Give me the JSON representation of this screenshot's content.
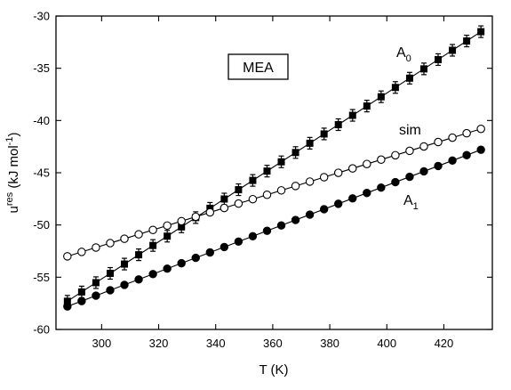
{
  "chart_data": {
    "type": "scatter",
    "xlabel": {
      "base": "T (K)"
    },
    "ylabel": {
      "base": "u",
      "sup": "res",
      "rest": " (kJ mol",
      "sup2": "-1",
      "end": ")"
    },
    "xlim": [
      284,
      437
    ],
    "ylim": [
      -60,
      -30
    ],
    "xticks": [
      300,
      320,
      340,
      360,
      380,
      400,
      420
    ],
    "yticks": [
      -60,
      -55,
      -50,
      -45,
      -40,
      -35,
      -30
    ],
    "annotations": {
      "box_label": "MEA",
      "a0": {
        "base": "A",
        "sub": "0"
      },
      "sim": {
        "base": "sim"
      },
      "a1": {
        "base": "A",
        "sub": "1"
      }
    },
    "x": [
      288,
      293,
      298,
      303,
      308,
      313,
      318,
      323,
      328,
      333,
      338,
      343,
      348,
      353,
      358,
      363,
      368,
      373,
      378,
      383,
      388,
      393,
      398,
      403,
      408,
      413,
      418,
      423,
      428,
      433
    ],
    "series": [
      {
        "marker": "filled-square",
        "fit": {
          "x0": 288,
          "y0": -57.3,
          "x1": 433,
          "y1": -31.5
        }
      },
      {
        "marker": "open-circle",
        "fit": {
          "x0": 288,
          "y0": -53.0,
          "x1": 433,
          "y1": -40.8
        }
      },
      {
        "marker": "filled-circle",
        "fit": {
          "x0": 288,
          "y0": -57.8,
          "x1": 433,
          "y1": -42.8
        }
      }
    ],
    "grid": false,
    "legend": "none"
  }
}
